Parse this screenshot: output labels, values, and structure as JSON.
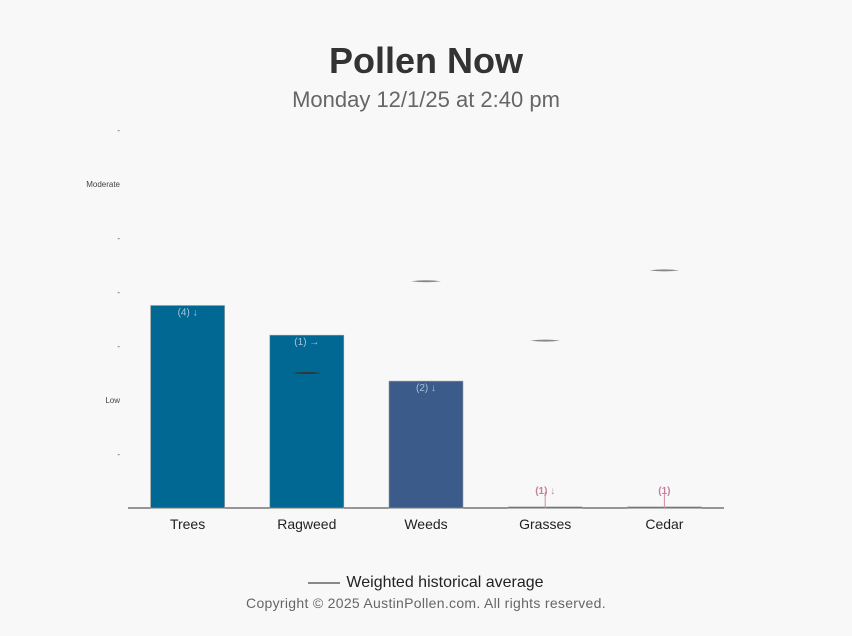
{
  "title": "Pollen Now",
  "subtitle": "Monday 12/1/25 at 2:40 pm",
  "chart_data": {
    "type": "bar",
    "categories": [
      "Trees",
      "Ragweed",
      "Weeds",
      "Grasses",
      "Cedar"
    ],
    "values": [
      3.75,
      3.2,
      2.35,
      0.02,
      0.02
    ],
    "labels": [
      "(4) ↓",
      "(1) →",
      "(2) ↓",
      "(1) ↓",
      "(1)"
    ],
    "historical_average": [
      null,
      2.5,
      4.2,
      3.1,
      4.4
    ],
    "bar_colors": [
      "#006892",
      "#006892",
      "#3b5b8b",
      "#006892",
      "#006892"
    ],
    "y_ticks": [
      {
        "value": 1,
        "label": "-"
      },
      {
        "value": 2,
        "label": "Low"
      },
      {
        "value": 3,
        "label": "-"
      },
      {
        "value": 4,
        "label": "-"
      },
      {
        "value": 5,
        "label": "-"
      },
      {
        "value": 6,
        "label": "Moderate"
      },
      {
        "value": 7,
        "label": "-"
      }
    ],
    "ylim": [
      0,
      7
    ],
    "legend": "Weighted historical average",
    "legend_position": "bottom"
  },
  "copyright": "Copyright © 2025 AustinPollen.com.  All rights reserved."
}
